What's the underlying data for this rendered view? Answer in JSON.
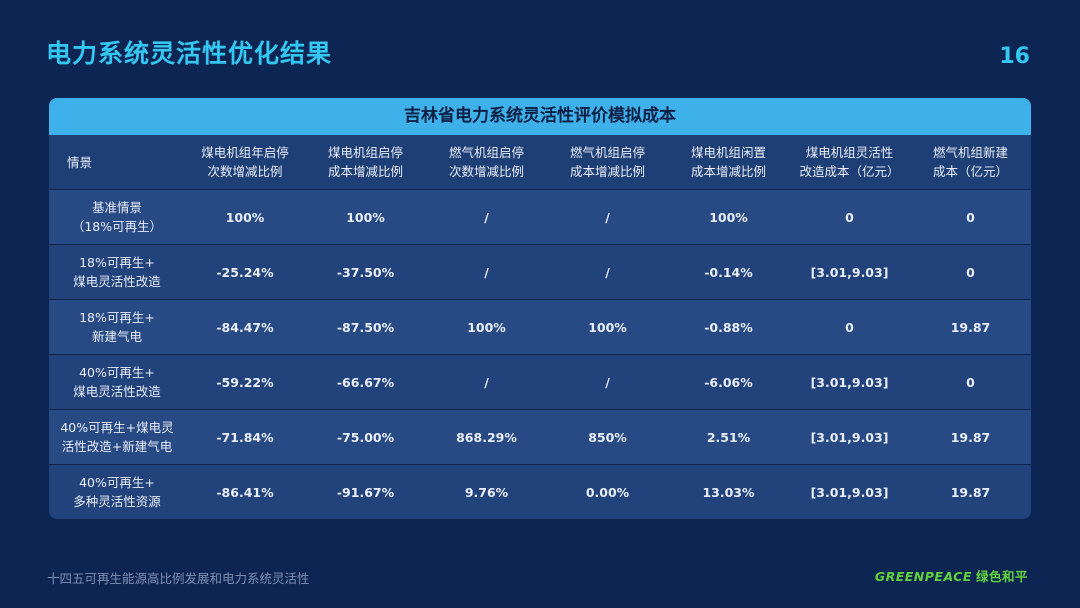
{
  "header": {
    "title": "电力系统灵活性优化结果",
    "page_number": "16"
  },
  "table": {
    "title": "吉林省电力系统灵活性评价模拟成本",
    "columns": [
      [
        "情景"
      ],
      [
        "煤电机组年启停",
        "次数增减比例"
      ],
      [
        "煤电机组启停",
        "成本增减比例"
      ],
      [
        "燃气机组启停",
        "次数增减比例"
      ],
      [
        "燃气机组启停",
        "成本增减比例"
      ],
      [
        "煤电机组闲置",
        "成本增减比例"
      ],
      [
        "煤电机组灵活性",
        "改造成本（亿元）"
      ],
      [
        "燃气机组新建",
        "成本（亿元）"
      ]
    ],
    "rows": [
      {
        "scene": [
          "基准情景",
          "（18%可再生）"
        ],
        "values": [
          "100%",
          "100%",
          "/",
          "/",
          "100%",
          "0",
          "0"
        ]
      },
      {
        "scene": [
          "18%可再生+",
          "煤电灵活性改造"
        ],
        "values": [
          "-25.24%",
          "-37.50%",
          "/",
          "/",
          "-0.14%",
          "[3.01,9.03]",
          "0"
        ]
      },
      {
        "scene": [
          "18%可再生+",
          "新建气电"
        ],
        "values": [
          "-84.47%",
          "-87.50%",
          "100%",
          "100%",
          "-0.88%",
          "0",
          "19.87"
        ]
      },
      {
        "scene": [
          "40%可再生+",
          "煤电灵活性改造"
        ],
        "values": [
          "-59.22%",
          "-66.67%",
          "/",
          "/",
          "-6.06%",
          "[3.01,9.03]",
          "0"
        ]
      },
      {
        "scene": [
          "40%可再生+煤电灵",
          "活性改造+新建气电"
        ],
        "values": [
          "-71.84%",
          "-75.00%",
          "868.29%",
          "850%",
          "2.51%",
          "[3.01,9.03]",
          "19.87"
        ]
      },
      {
        "scene": [
          "40%可再生+",
          "多种灵活性资源"
        ],
        "values": [
          "-86.41%",
          "-91.67%",
          "9.76%",
          "0.00%",
          "13.03%",
          "[3.01,9.03]",
          "19.87"
        ]
      }
    ]
  },
  "footer": {
    "text": "十四五可再生能源高比例发展和电力系统灵活性",
    "logo_en": "GREENPEACE",
    "logo_cn": "绿色和平"
  },
  "colors": {
    "background": "#0d2552",
    "accent": "#34c7f2",
    "table_header": "#3fb1ea",
    "logo": "#62d23c"
  }
}
